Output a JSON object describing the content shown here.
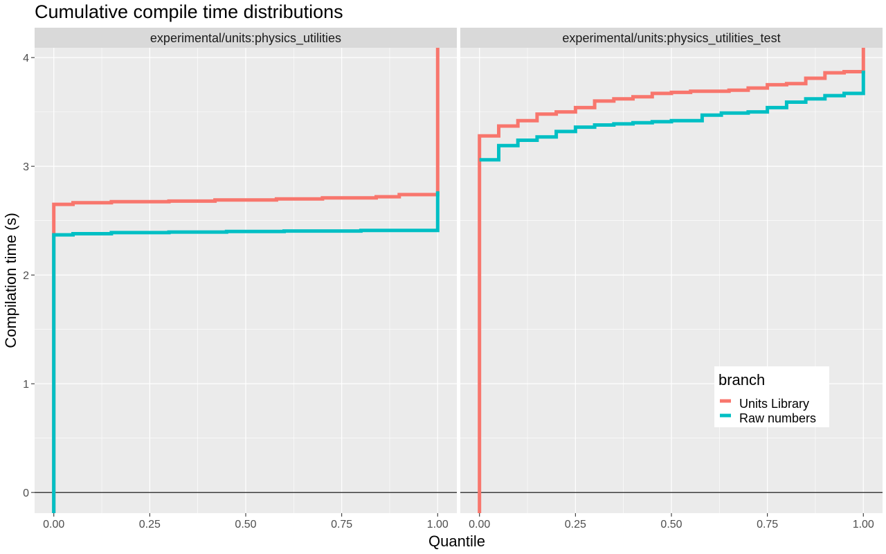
{
  "chart_data": {
    "type": "line",
    "step": true,
    "title": "Cumulative compile time distributions",
    "xlabel": "Quantile",
    "ylabel": "Compilation time (s)",
    "xlim": [
      -0.05,
      1.05
    ],
    "ylim": [
      -0.19,
      4.09
    ],
    "x_ticks": [
      0,
      0.25,
      0.5,
      0.75,
      1
    ],
    "x_tick_labels": [
      "0.00",
      "0.25",
      "0.50",
      "0.75",
      "1.00"
    ],
    "y_ticks": [
      0,
      1,
      2,
      3,
      4
    ],
    "y_tick_labels": [
      "0",
      "1",
      "2",
      "3",
      "4"
    ],
    "hline": 0,
    "grid": true,
    "legend": {
      "title": "branch",
      "position": "inside-bottom-right",
      "entries": [
        "Units Library",
        "Raw numbers"
      ]
    },
    "colors": {
      "Units Library": "#F8766D",
      "Raw numbers": "#00BFC4",
      "panel_bg": "#EBEBEB",
      "strip_bg": "#D9D9D9",
      "grid": "#FFFFFF"
    },
    "panels": [
      {
        "name": "experimental/units:physics_utilities",
        "series": [
          {
            "name": "Units Library",
            "x": [
              0,
              0,
              0.05,
              0.15,
              0.3,
              0.42,
              0.58,
              0.7,
              0.84,
              0.9,
              1,
              1
            ],
            "y": [
              -0.19,
              2.65,
              2.665,
              2.675,
              2.68,
              2.69,
              2.7,
              2.71,
              2.72,
              2.74,
              2.77,
              4.09
            ]
          },
          {
            "name": "Raw numbers",
            "x": [
              0,
              0,
              0.05,
              0.15,
              0.3,
              0.45,
              0.6,
              0.8,
              1,
              1
            ],
            "y": [
              -0.19,
              2.37,
              2.38,
              2.39,
              2.395,
              2.4,
              2.405,
              2.41,
              2.42,
              2.77
            ]
          }
        ]
      },
      {
        "name": "experimental/units:physics_utilities_test",
        "series": [
          {
            "name": "Units Library",
            "x": [
              0,
              0,
              0.05,
              0.1,
              0.15,
              0.2,
              0.25,
              0.3,
              0.35,
              0.4,
              0.45,
              0.5,
              0.55,
              0.6,
              0.65,
              0.7,
              0.75,
              0.8,
              0.85,
              0.9,
              0.95,
              1,
              1
            ],
            "y": [
              -0.19,
              3.28,
              3.37,
              3.42,
              3.48,
              3.5,
              3.54,
              3.6,
              3.62,
              3.64,
              3.67,
              3.68,
              3.69,
              3.69,
              3.7,
              3.72,
              3.75,
              3.76,
              3.81,
              3.86,
              3.87,
              3.88,
              4.09
            ]
          },
          {
            "name": "Raw numbers",
            "x": [
              0,
              0.05,
              0.1,
              0.15,
              0.2,
              0.25,
              0.3,
              0.35,
              0.4,
              0.45,
              0.5,
              0.55,
              0.58,
              0.63,
              0.7,
              0.75,
              0.8,
              0.85,
              0.9,
              0.95,
              1,
              1
            ],
            "y": [
              3.06,
              3.19,
              3.24,
              3.27,
              3.32,
              3.36,
              3.38,
              3.39,
              3.4,
              3.41,
              3.42,
              3.42,
              3.47,
              3.49,
              3.5,
              3.54,
              3.59,
              3.62,
              3.65,
              3.67,
              3.71,
              3.88
            ]
          }
        ]
      }
    ]
  }
}
